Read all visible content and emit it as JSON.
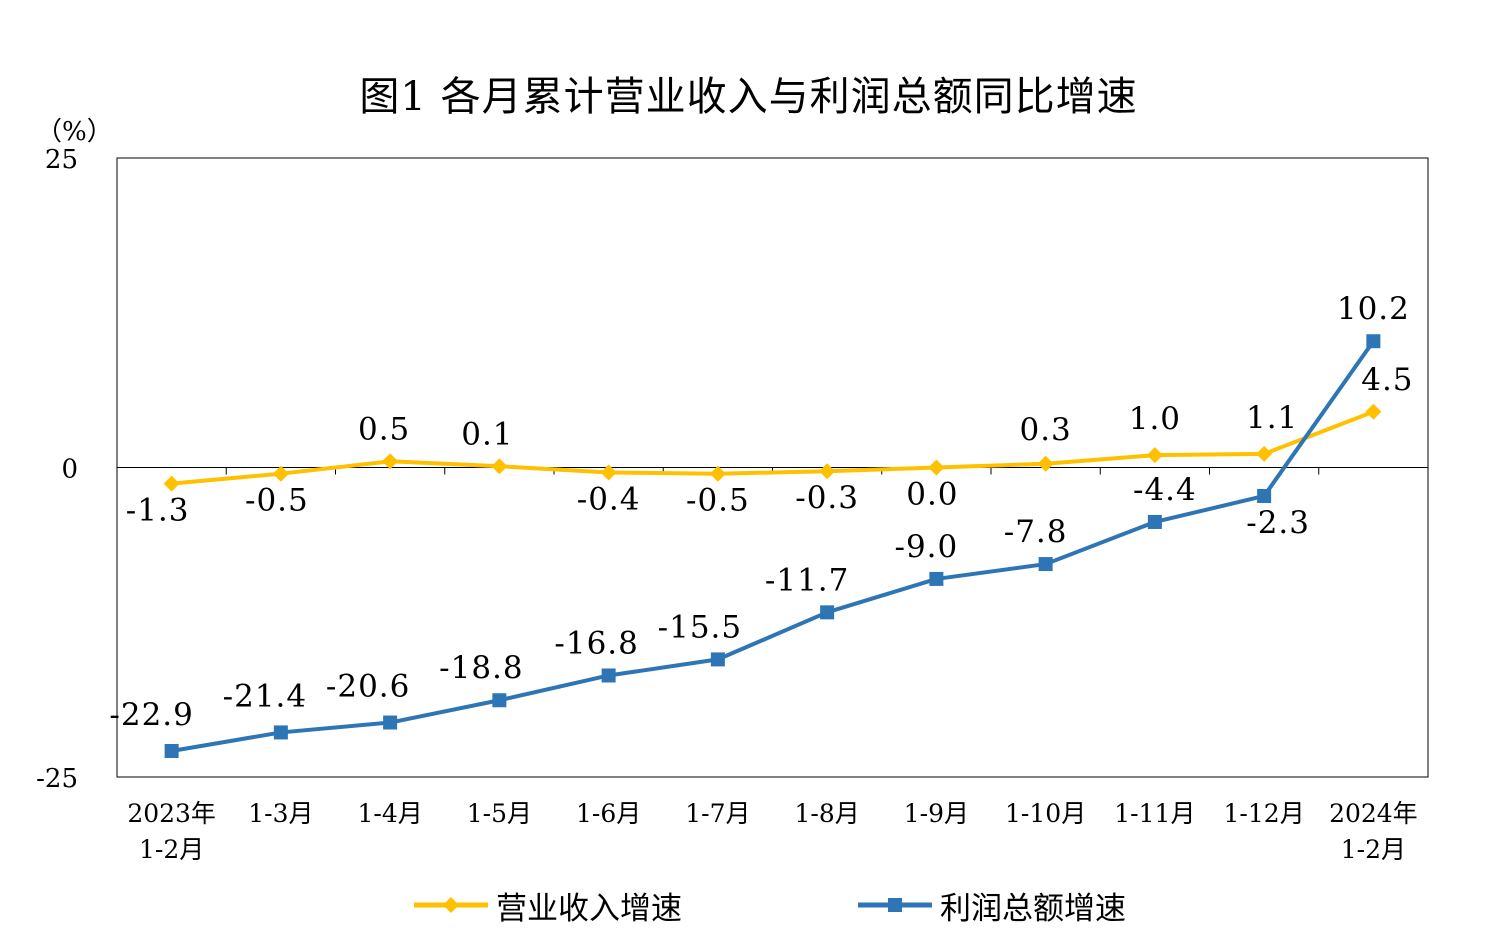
{
  "title": "图1  各月累计营业收入与利润总额同比增速",
  "chart_data": {
    "type": "line",
    "unit_label": "（%）",
    "ylim": [
      -25,
      25
    ],
    "yticks": [
      "25",
      "0",
      "-25"
    ],
    "grid": false,
    "categories": [
      [
        "2023年",
        "1-2月"
      ],
      [
        "1-3月"
      ],
      [
        "1-4月"
      ],
      [
        "1-5月"
      ],
      [
        "1-6月"
      ],
      [
        "1-7月"
      ],
      [
        "1-8月"
      ],
      [
        "1-9月"
      ],
      [
        "1-10月"
      ],
      [
        "1-11月"
      ],
      [
        "1-12月"
      ],
      [
        "2024年",
        "1-2月"
      ]
    ],
    "series": [
      {
        "name": "营业收入增速",
        "color": "#FFC000",
        "marker": "diamond",
        "values": [
          -1.3,
          -0.5,
          0.5,
          0.1,
          -0.4,
          -0.5,
          -0.3,
          0.0,
          0.3,
          1.0,
          1.1,
          4.5
        ],
        "labels": [
          "-1.3",
          "-0.5",
          "0.5",
          "0.1",
          "-0.4",
          "-0.5",
          "-0.3",
          "0.0",
          "0.3",
          "1.0",
          "1.1",
          "4.5"
        ]
      },
      {
        "name": "利润总额增速",
        "color": "#2E75B6",
        "marker": "square",
        "values": [
          -22.9,
          -21.4,
          -20.6,
          -18.8,
          -16.8,
          -15.5,
          -11.7,
          -9.0,
          -7.8,
          -4.4,
          -2.3,
          10.2
        ],
        "labels": [
          "-22.9",
          "-21.4",
          "-20.6",
          "-18.8",
          "-16.8",
          "-15.5",
          "-11.7",
          "-9.0",
          "-7.8",
          "-4.4",
          "-2.3",
          "10.2"
        ]
      }
    ],
    "legend_position": "bottom"
  }
}
